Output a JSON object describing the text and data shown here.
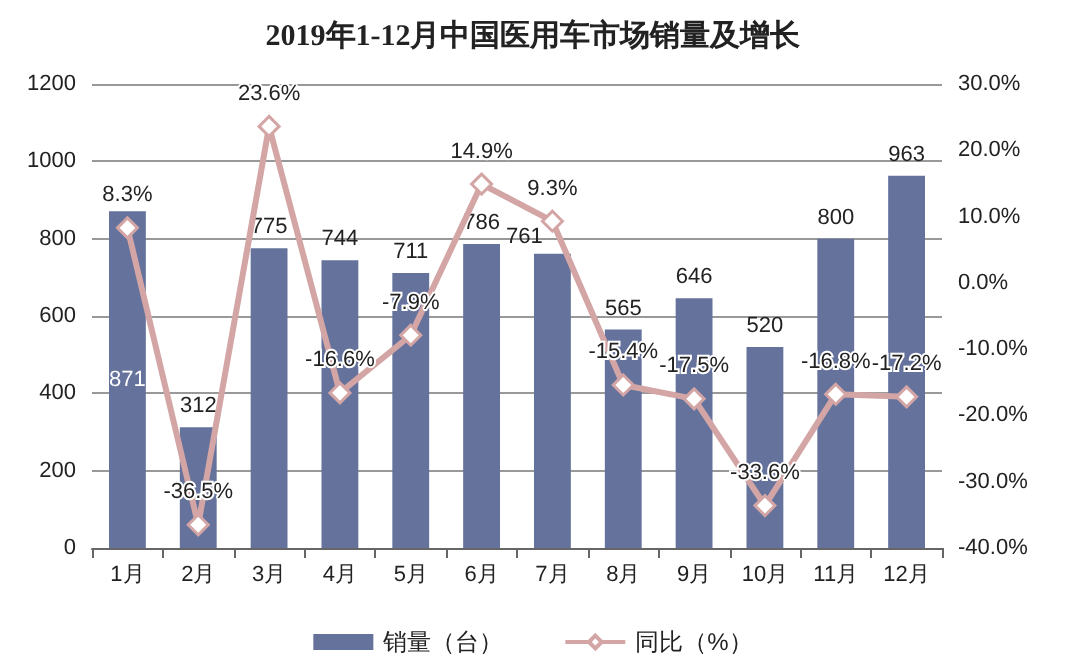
{
  "chart_data": {
    "type": "bar",
    "title": "2019年1-12月中国医用车市场销量及增长",
    "categories": [
      "1月",
      "2月",
      "3月",
      "4月",
      "5月",
      "6月",
      "7月",
      "8月",
      "9月",
      "10月",
      "11月",
      "12月"
    ],
    "series": [
      {
        "name": "销量（台）",
        "color": "#64729c",
        "values": [
          871,
          312,
          775,
          744,
          711,
          786,
          761,
          565,
          646,
          520,
          800,
          963
        ],
        "value_labels": [
          "871",
          "312",
          "775",
          "744",
          "711",
          "786",
          "761",
          "565",
          "646",
          "520",
          "800",
          "963"
        ]
      },
      {
        "name": "同比（%）",
        "type": "line",
        "axis": "y2",
        "color": "#d4a5a5",
        "marker": "diamond",
        "values": [
          8.3,
          -36.5,
          23.6,
          -16.6,
          -7.9,
          14.9,
          9.3,
          -15.4,
          -17.5,
          -33.6,
          -16.8,
          -17.2
        ],
        "value_labels": [
          "8.3%",
          "-36.5%",
          "23.6%",
          "-16.6%",
          "-7.9%",
          "14.9%",
          "9.3%",
          "-15.4%",
          "-17.5%",
          "-33.6%",
          "-16.8%",
          "-17.2%"
        ]
      }
    ],
    "ylim": [
      0,
      1200
    ],
    "yticks": [
      0,
      200,
      400,
      600,
      800,
      1000,
      1200
    ],
    "y2lim": [
      -40,
      30
    ],
    "y2ticks": [
      {
        "value": -40,
        "label": "-40.0%"
      },
      {
        "value": -30,
        "label": "-30.0%"
      },
      {
        "value": -20,
        "label": "-20.0%"
      },
      {
        "value": -10,
        "label": "-10.0%"
      },
      {
        "value": 0,
        "label": "0.0%"
      },
      {
        "value": 10,
        "label": "10.0%"
      },
      {
        "value": 20,
        "label": "20.0%"
      },
      {
        "value": 30,
        "label": "30.0%"
      }
    ],
    "grid": "y",
    "legend": "bottom"
  }
}
